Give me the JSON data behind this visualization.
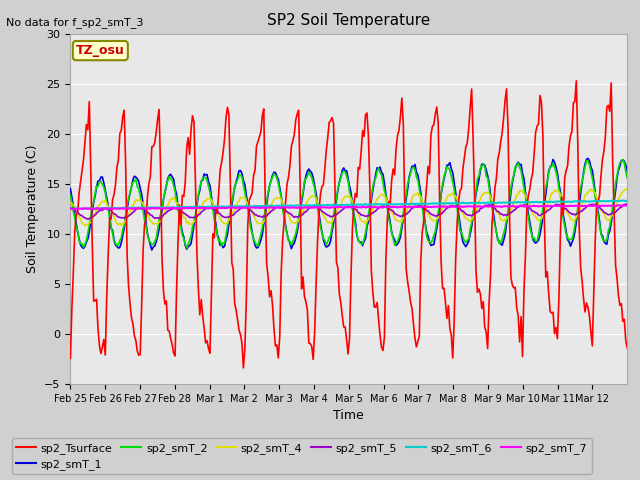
{
  "title": "SP2 Soil Temperature",
  "ylabel": "Soil Temperature (C)",
  "xlabel": "Time",
  "no_data_label": "No data for f_sp2_smT_3",
  "tz_label": "TZ_osu",
  "ylim": [
    -5,
    30
  ],
  "yticks": [
    -5,
    0,
    5,
    10,
    15,
    20,
    25,
    30
  ],
  "x_tick_labels": [
    "Feb 25",
    "Feb 26",
    "Feb 27",
    "Feb 28",
    "Mar 1",
    "Mar 2",
    "Mar 3",
    "Mar 4",
    "Mar 5",
    "Mar 6",
    "Mar 7",
    "Mar 8",
    "Mar 9",
    "Mar 10",
    "Mar 11",
    "Mar 12"
  ],
  "fig_facecolor": "#d0d0d0",
  "plot_facecolor": "#e8e8e8",
  "grid_color": "#ffffff",
  "series": {
    "sp2_Tsurface": {
      "color": "#ff0000",
      "linewidth": 1.2
    },
    "sp2_smT_1": {
      "color": "#0000dd",
      "linewidth": 1.2
    },
    "sp2_smT_2": {
      "color": "#00dd00",
      "linewidth": 1.2
    },
    "sp2_smT_4": {
      "color": "#dddd00",
      "linewidth": 1.2
    },
    "sp2_smT_5": {
      "color": "#9900cc",
      "linewidth": 1.2
    },
    "sp2_smT_6": {
      "color": "#00cccc",
      "linewidth": 1.5
    },
    "sp2_smT_7": {
      "color": "#ff00ff",
      "linewidth": 1.5
    }
  }
}
